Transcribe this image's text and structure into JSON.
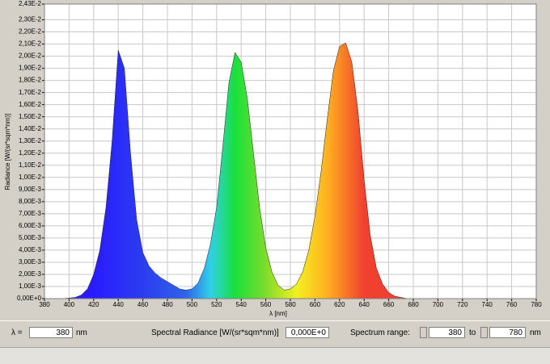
{
  "chart_data": {
    "type": "area",
    "xlabel": "λ [nm]",
    "ylabel": "Radiance [W/(sr*sqm*nm)]",
    "x": [
      380,
      385,
      390,
      395,
      400,
      405,
      410,
      415,
      420,
      425,
      430,
      435,
      440,
      445,
      450,
      455,
      460,
      465,
      470,
      475,
      480,
      485,
      490,
      495,
      500,
      505,
      510,
      515,
      520,
      525,
      530,
      535,
      540,
      545,
      550,
      555,
      560,
      565,
      570,
      575,
      580,
      585,
      590,
      595,
      600,
      605,
      610,
      615,
      620,
      625,
      630,
      635,
      640,
      645,
      650,
      655,
      660,
      665,
      670,
      675,
      680,
      685,
      690,
      695,
      700,
      705,
      710,
      715,
      720,
      725,
      730,
      735,
      740,
      745,
      750,
      755,
      760,
      765,
      770,
      775,
      780
    ],
    "values": [
      0,
      0,
      0,
      0,
      5e-05,
      0.0001,
      0.0003,
      0.0008,
      0.002,
      0.004,
      0.0075,
      0.013,
      0.0205,
      0.019,
      0.012,
      0.0065,
      0.0038,
      0.0027,
      0.0021,
      0.0017,
      0.0014,
      0.0011,
      0.0008,
      0.0007,
      0.0008,
      0.0013,
      0.0025,
      0.0045,
      0.0075,
      0.0125,
      0.0178,
      0.0203,
      0.0195,
      0.0165,
      0.012,
      0.0075,
      0.0042,
      0.0022,
      0.0011,
      0.0007,
      0.0008,
      0.0012,
      0.0022,
      0.004,
      0.0068,
      0.0105,
      0.0148,
      0.0188,
      0.0208,
      0.0211,
      0.0195,
      0.0155,
      0.0098,
      0.0052,
      0.0025,
      0.0012,
      0.0005,
      0.0002,
      0.0001,
      0,
      0,
      0,
      0,
      0,
      0,
      0,
      0,
      0,
      0,
      0,
      0,
      0,
      0,
      0,
      0,
      0,
      0,
      0,
      0,
      0,
      0
    ],
    "fill_gradient": [
      {
        "x": 420,
        "color": "#2a1bff"
      },
      {
        "x": 460,
        "color": "#2b3df0"
      },
      {
        "x": 495,
        "color": "#2f63e8"
      },
      {
        "x": 515,
        "color": "#2fd0e8"
      },
      {
        "x": 535,
        "color": "#19e03c"
      },
      {
        "x": 560,
        "color": "#7fdc2a"
      },
      {
        "x": 585,
        "color": "#f4f020"
      },
      {
        "x": 610,
        "color": "#ffb020"
      },
      {
        "x": 640,
        "color": "#f04030"
      }
    ],
    "xlim": [
      380,
      780
    ],
    "xticks": [
      380,
      400,
      420,
      440,
      460,
      480,
      500,
      520,
      540,
      560,
      580,
      600,
      620,
      640,
      660,
      680,
      700,
      720,
      740,
      760,
      780
    ],
    "ylim": [
      0,
      0.0243
    ],
    "yticks": [
      {
        "value": 0,
        "label": "0,00E+0"
      },
      {
        "value": 0.001,
        "label": "1,00E-3"
      },
      {
        "value": 0.002,
        "label": "2,00E-3"
      },
      {
        "value": 0.003,
        "label": "3,00E-3"
      },
      {
        "value": 0.004,
        "label": "4,00E-3"
      },
      {
        "value": 0.005,
        "label": "5,00E-3"
      },
      {
        "value": 0.006,
        "label": "6,00E-3"
      },
      {
        "value": 0.007,
        "label": "7,00E-3"
      },
      {
        "value": 0.008,
        "label": "8,00E-3"
      },
      {
        "value": 0.009,
        "label": "9,00E-3"
      },
      {
        "value": 0.01,
        "label": "1,00E-2"
      },
      {
        "value": 0.011,
        "label": "1,10E-2"
      },
      {
        "value": 0.012,
        "label": "1,20E-2"
      },
      {
        "value": 0.013,
        "label": "1,30E-2"
      },
      {
        "value": 0.014,
        "label": "1,40E-2"
      },
      {
        "value": 0.015,
        "label": "1,50E-2"
      },
      {
        "value": 0.016,
        "label": "1,60E-2"
      },
      {
        "value": 0.017,
        "label": "1,70E-2"
      },
      {
        "value": 0.018,
        "label": "1,80E-2"
      },
      {
        "value": 0.019,
        "label": "1,90E-2"
      },
      {
        "value": 0.02,
        "label": "2,00E-2"
      },
      {
        "value": 0.021,
        "label": "2,10E-2"
      },
      {
        "value": 0.022,
        "label": "2,20E-2"
      },
      {
        "value": 0.023,
        "label": "2,30E-2"
      },
      {
        "value": 0.0243,
        "label": "2,43E-2"
      }
    ],
    "grid": true
  },
  "controls": {
    "lambda_label": "λ =",
    "lambda_value": "380",
    "lambda_unit": "nm",
    "radiance_label": "Spectral Radiance [W/(sr*sqm*nm)]",
    "radiance_value": "0,000E+0",
    "range_label": "Spectrum range:",
    "range_from": "380",
    "range_to_label": "to",
    "range_to": "780",
    "range_unit": "nm"
  }
}
